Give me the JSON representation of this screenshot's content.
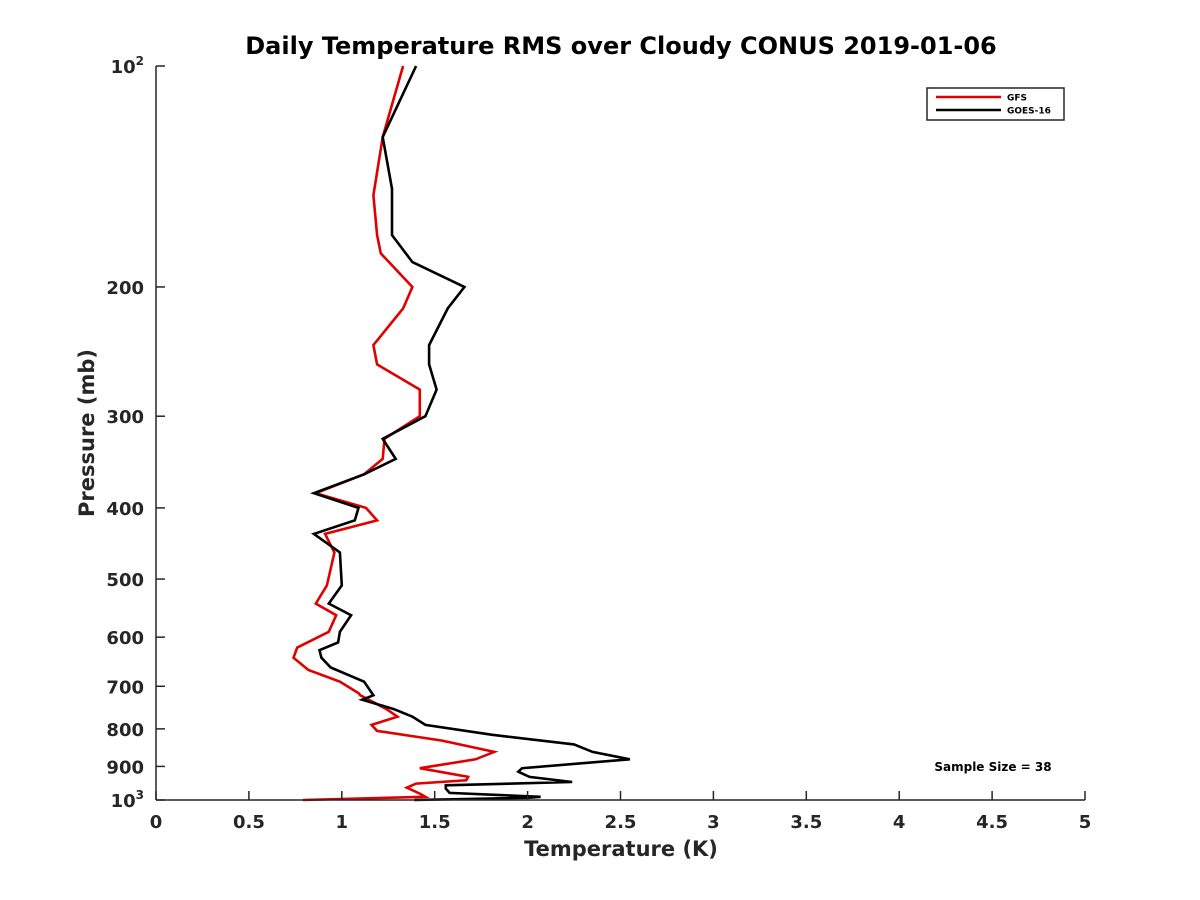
{
  "chart_data": {
    "type": "line",
    "title": "Daily Temperature RMS over Cloudy CONUS 2019-01-06",
    "xlabel": "Temperature (K)",
    "ylabel": "Pressure (mb)",
    "xlim": [
      0,
      5
    ],
    "ylim": [
      100,
      1000
    ],
    "yscale": "log",
    "y_reversed": true,
    "x_ticks": [
      {
        "value": 0,
        "label": "0"
      },
      {
        "value": 0.5,
        "label": "0.5"
      },
      {
        "value": 1,
        "label": "1"
      },
      {
        "value": 1.5,
        "label": "1.5"
      },
      {
        "value": 2,
        "label": "2"
      },
      {
        "value": 2.5,
        "label": "2.5"
      },
      {
        "value": 3,
        "label": "3"
      },
      {
        "value": 3.5,
        "label": "3.5"
      },
      {
        "value": 4,
        "label": "4"
      },
      {
        "value": 4.5,
        "label": "4.5"
      },
      {
        "value": 5,
        "label": "5"
      }
    ],
    "y_ticks": [
      {
        "value": 100,
        "label": "10",
        "sup": "2"
      },
      {
        "value": 200,
        "label": "200",
        "sup": ""
      },
      {
        "value": 300,
        "label": "300",
        "sup": ""
      },
      {
        "value": 400,
        "label": "400",
        "sup": ""
      },
      {
        "value": 500,
        "label": "500",
        "sup": ""
      },
      {
        "value": 600,
        "label": "600",
        "sup": ""
      },
      {
        "value": 700,
        "label": "700",
        "sup": ""
      },
      {
        "value": 800,
        "label": "800",
        "sup": ""
      },
      {
        "value": 900,
        "label": "900",
        "sup": ""
      },
      {
        "value": 1000,
        "label": "10",
        "sup": "3"
      }
    ],
    "grid": false,
    "legend_position": "top-right",
    "annotation": "Sample Size = 38",
    "series": [
      {
        "name": "GFS",
        "color": "#e00000",
        "points": [
          [
            1.33,
            100
          ],
          [
            1.22,
            125
          ],
          [
            1.17,
            150
          ],
          [
            1.19,
            170
          ],
          [
            1.21,
            180
          ],
          [
            1.38,
            200
          ],
          [
            1.33,
            214
          ],
          [
            1.17,
            240
          ],
          [
            1.19,
            255
          ],
          [
            1.42,
            276
          ],
          [
            1.42,
            300
          ],
          [
            1.23,
            322
          ],
          [
            1.22,
            343
          ],
          [
            1.12,
            360
          ],
          [
            0.86,
            382
          ],
          [
            1.13,
            400
          ],
          [
            1.19,
            416
          ],
          [
            0.91,
            434
          ],
          [
            0.96,
            460
          ],
          [
            0.92,
            510
          ],
          [
            0.86,
            540
          ],
          [
            0.97,
            560
          ],
          [
            0.93,
            590
          ],
          [
            0.76,
            620
          ],
          [
            0.74,
            640
          ],
          [
            0.82,
            665
          ],
          [
            0.99,
            690
          ],
          [
            1.09,
            715
          ],
          [
            1.1,
            720
          ],
          [
            1.24,
            752
          ],
          [
            1.3,
            770
          ],
          [
            1.16,
            790
          ],
          [
            1.19,
            805
          ],
          [
            1.54,
            830
          ],
          [
            1.82,
            860
          ],
          [
            1.72,
            880
          ],
          [
            1.42,
            905
          ],
          [
            1.68,
            930
          ],
          [
            1.67,
            940
          ],
          [
            1.4,
            950
          ],
          [
            1.35,
            962
          ],
          [
            1.42,
            980
          ],
          [
            1.45,
            990
          ],
          [
            0.79,
            1000
          ]
        ]
      },
      {
        "name": "GOES-16",
        "color": "#000000",
        "points": [
          [
            1.4,
            100
          ],
          [
            1.22,
            125
          ],
          [
            1.27,
            147
          ],
          [
            1.27,
            170
          ],
          [
            1.38,
            185
          ],
          [
            1.66,
            200
          ],
          [
            1.57,
            214
          ],
          [
            1.47,
            240
          ],
          [
            1.47,
            255
          ],
          [
            1.51,
            276
          ],
          [
            1.45,
            300
          ],
          [
            1.22,
            322
          ],
          [
            1.29,
            343
          ],
          [
            1.12,
            360
          ],
          [
            0.85,
            382
          ],
          [
            1.09,
            400
          ],
          [
            1.07,
            416
          ],
          [
            0.85,
            434
          ],
          [
            0.99,
            460
          ],
          [
            1.0,
            510
          ],
          [
            0.93,
            540
          ],
          [
            1.05,
            560
          ],
          [
            0.99,
            590
          ],
          [
            0.98,
            610
          ],
          [
            0.88,
            625
          ],
          [
            0.89,
            640
          ],
          [
            0.94,
            660
          ],
          [
            1.12,
            690
          ],
          [
            1.17,
            720
          ],
          [
            1.11,
            730
          ],
          [
            1.28,
            752
          ],
          [
            1.38,
            770
          ],
          [
            1.45,
            790
          ],
          [
            1.81,
            815
          ],
          [
            2.25,
            840
          ],
          [
            2.35,
            860
          ],
          [
            2.55,
            880
          ],
          [
            1.97,
            905
          ],
          [
            1.95,
            915
          ],
          [
            2.01,
            930
          ],
          [
            2.24,
            945
          ],
          [
            1.56,
            955
          ],
          [
            1.56,
            965
          ],
          [
            1.58,
            978
          ],
          [
            2.07,
            990
          ],
          [
            2.0,
            993
          ],
          [
            1.39,
            1000
          ]
        ]
      }
    ]
  }
}
